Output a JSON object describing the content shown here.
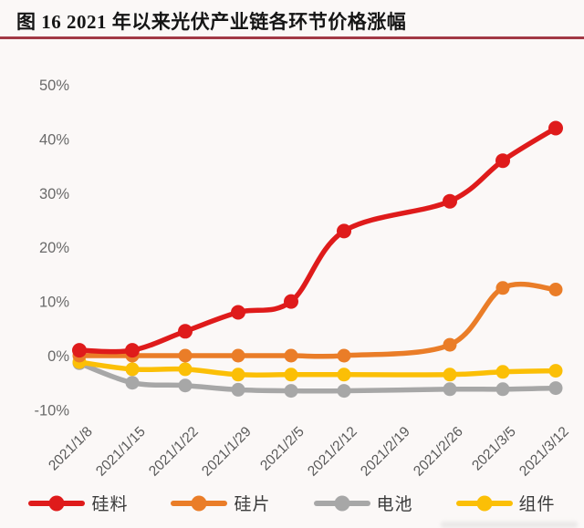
{
  "page": {
    "title": "图 16 2021 年以来光伏产业链各环节价格涨幅"
  },
  "chart_data": {
    "type": "line",
    "title": "图 16 2021 年以来光伏产业链各环节价格涨幅",
    "categories": [
      "2021/1/8",
      "2021/1/15",
      "2021/1/22",
      "2021/1/29",
      "2021/2/5",
      "2021/2/12",
      "2021/2/19",
      "2021/2/26",
      "2021/3/5",
      "2021/3/12"
    ],
    "series": [
      {
        "key": "silicon-material",
        "name": "硅料",
        "color": "#df1b1b",
        "values": [
          1,
          1,
          4.5,
          8,
          10,
          23,
          null,
          28.5,
          36,
          42
        ]
      },
      {
        "key": "wafer",
        "name": "硅片",
        "color": "#ea7d28",
        "values": [
          0,
          0,
          0,
          0,
          0,
          0,
          null,
          2,
          12.5,
          12.2
        ]
      },
      {
        "key": "cell",
        "name": "电池",
        "color": "#a7a7a7",
        "values": [
          -1.4,
          -5,
          -5.5,
          -6.3,
          -6.5,
          -6.5,
          null,
          -6.2,
          -6.2,
          -6
        ]
      },
      {
        "key": "module",
        "name": "组件",
        "color": "#fbbf06",
        "values": [
          -1.2,
          -2.5,
          -2.5,
          -3.5,
          -3.5,
          -3.5,
          null,
          -3.5,
          -3,
          -2.8
        ]
      }
    ],
    "y_ticks": [
      "50%",
      "40%",
      "30%",
      "20%",
      "10%",
      "0%",
      "-10%"
    ],
    "ylim": [
      -10,
      50
    ],
    "xlabel": "",
    "ylabel": "",
    "grid": false,
    "line_style": "smooth",
    "legend_position": "bottom",
    "missing_data_note": "2021/2/19 有数据标签但无标记点，折线直接插值"
  }
}
